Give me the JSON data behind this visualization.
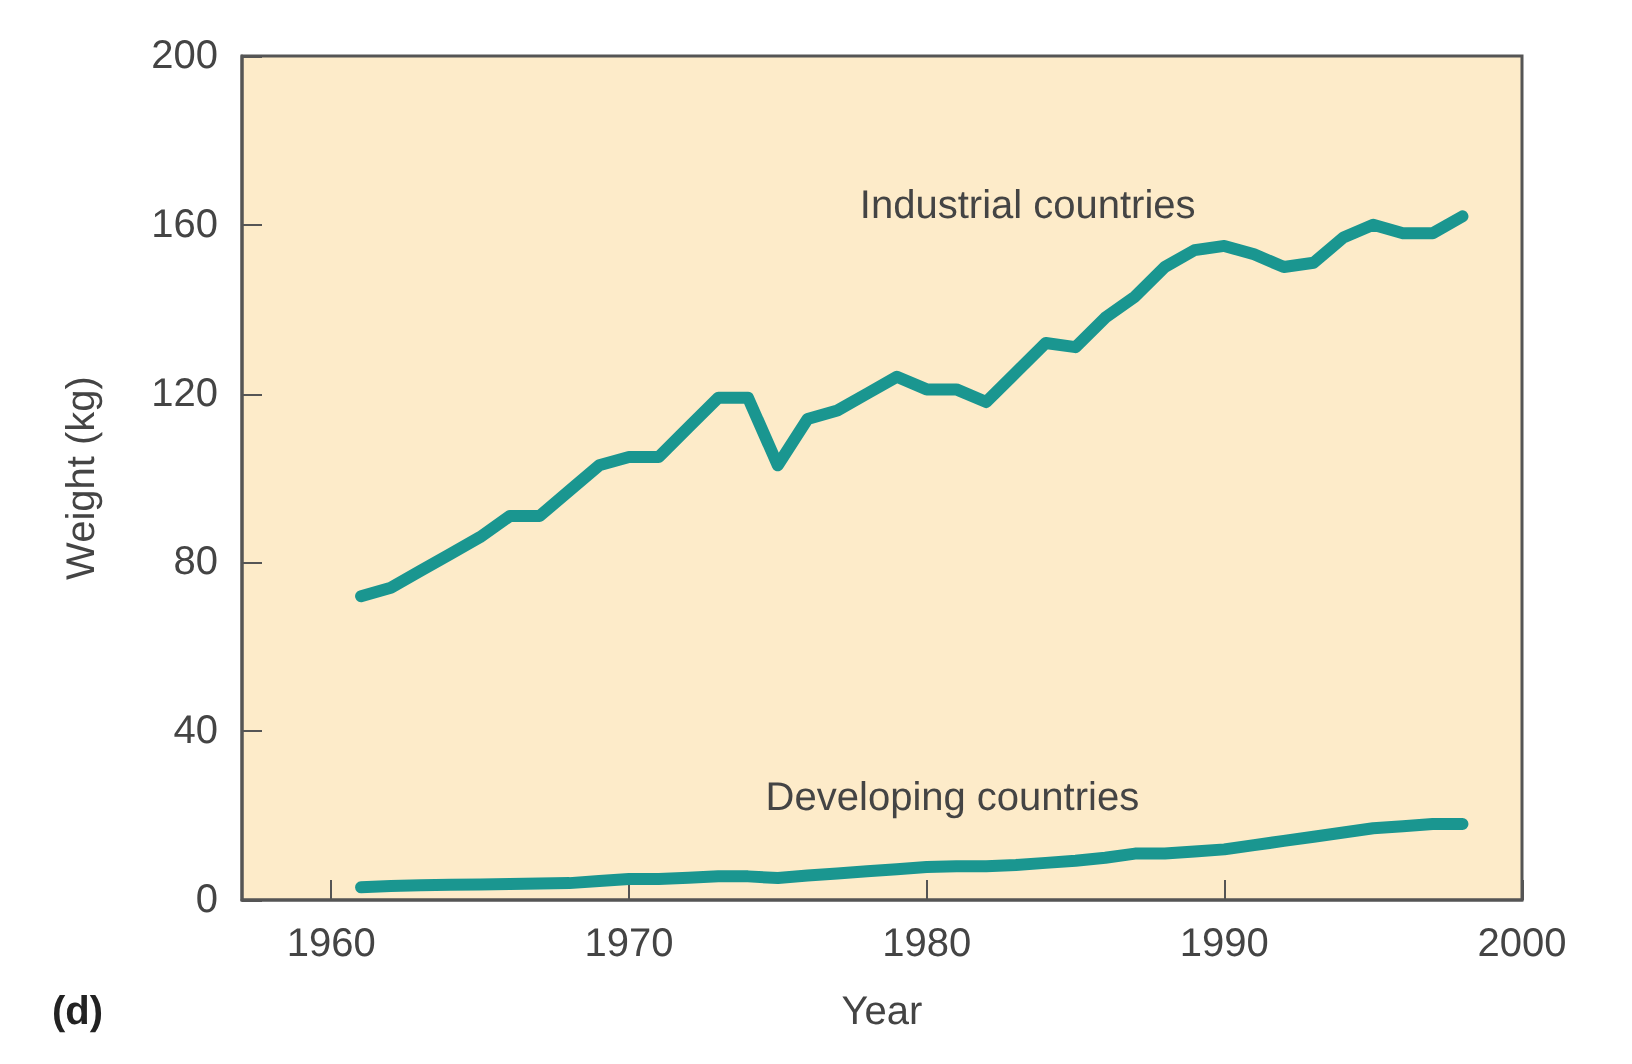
{
  "chart_data": {
    "type": "line",
    "xlabel": "Year",
    "ylabel": "Weight (kg)",
    "x": [
      1961,
      1962,
      1963,
      1964,
      1965,
      1966,
      1967,
      1968,
      1969,
      1970,
      1971,
      1972,
      1973,
      1974,
      1975,
      1976,
      1977,
      1978,
      1979,
      1980,
      1981,
      1982,
      1983,
      1984,
      1985,
      1986,
      1987,
      1988,
      1989,
      1990,
      1991,
      1992,
      1993,
      1994,
      1995,
      1996,
      1997,
      1998
    ],
    "series": [
      {
        "name": "Industrial countries",
        "color": "#1a9690",
        "values": [
          72,
          74,
          78,
          82,
          86,
          91,
          91,
          97,
          103,
          105,
          105,
          112,
          119,
          119,
          103,
          114,
          116,
          120,
          124,
          121,
          121,
          118,
          125,
          132,
          131,
          138,
          143,
          150,
          154,
          155,
          153,
          150,
          151,
          157,
          160,
          158,
          158,
          162
        ]
      },
      {
        "name": "Developing countries",
        "color": "#1a9690",
        "values": [
          3,
          3.3,
          3.5,
          3.6,
          3.7,
          3.8,
          3.9,
          4,
          4.5,
          5,
          5,
          5.3,
          5.6,
          5.6,
          5.2,
          5.8,
          6.3,
          6.8,
          7.3,
          7.8,
          8,
          8,
          8.3,
          8.8,
          9.3,
          10,
          11,
          11,
          11.5,
          12,
          13,
          14,
          15,
          16,
          17,
          17.5,
          18,
          18
        ]
      }
    ],
    "xlim": [
      1957,
      2000
    ],
    "xticks": [
      1960,
      1970,
      1980,
      1990,
      2000
    ],
    "ylim": [
      0,
      200
    ],
    "yticks": [
      0,
      40,
      80,
      120,
      160,
      200
    ],
    "grid": false,
    "legend": false,
    "marker": "none",
    "line_style": "solid",
    "annotations": [
      "(d)"
    ]
  }
}
